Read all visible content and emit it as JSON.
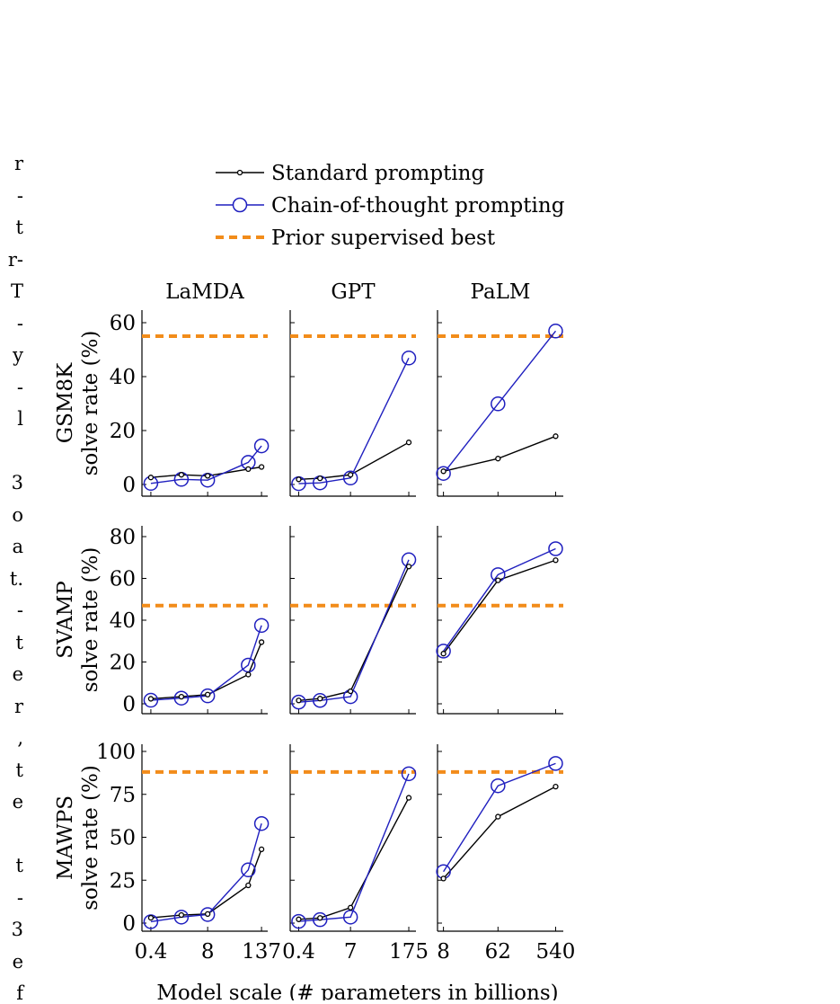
{
  "left_edge_fragments": [
    "r",
    "-",
    "t",
    "r-",
    "T",
    "-",
    "y",
    "-",
    "l",
    "",
    "3",
    "o",
    "a",
    "t.",
    "-",
    "t",
    "e",
    "r",
    ",",
    "t",
    "e",
    "",
    "t",
    "-",
    "3",
    "e",
    "f"
  ],
  "legend": {
    "standard": "Standard prompting",
    "cot": "Chain-of-thought prompting",
    "prior": "Prior supervised best"
  },
  "colors": {
    "standard": "#000000",
    "cot": "#1f1fbf",
    "prior": "#f28c1a"
  },
  "xlabel": "Model scale (# parameters in billions)",
  "columns": [
    "LaMDA",
    "GPT",
    "PaLM"
  ],
  "chart_data": {
    "type": "line",
    "title": "",
    "xlabel": "Model scale (# parameters in billions)",
    "x_scale": "log",
    "x_ticks": {
      "LaMDA": [
        0.4,
        8,
        137
      ],
      "GPT": [
        0.4,
        7,
        175
      ],
      "PaLM": [
        8,
        62,
        540
      ]
    },
    "x": {
      "LaMDA": [
        0.4,
        2,
        8,
        68,
        137
      ],
      "GPT": [
        0.4,
        1.3,
        7,
        175
      ],
      "PaLM": [
        8,
        62,
        540
      ]
    },
    "rows": [
      {
        "dataset": "GSM8K",
        "ylabel": "solve rate (%)",
        "ylim": [
          0,
          60
        ],
        "yticks": [
          0,
          20,
          40,
          60
        ],
        "prior_best": 55,
        "LaMDA": {
          "standard": [
            2.6,
            3.6,
            3.2,
            5.7,
            6.5
          ],
          "cot": [
            0.4,
            1.9,
            1.6,
            8.2,
            14.3
          ]
        },
        "GPT": {
          "standard": [
            1.9,
            2.3,
            3.6,
            15.6
          ],
          "cot": [
            0.3,
            0.6,
            2.4,
            46.9
          ]
        },
        "PaLM": {
          "standard": [
            4.9,
            9.6,
            17.9
          ],
          "cot": [
            4.1,
            29.9,
            56.9
          ]
        }
      },
      {
        "dataset": "SVAMP",
        "ylabel": "solve rate (%)",
        "ylim": [
          0,
          80
        ],
        "yticks": [
          0,
          20,
          40,
          60,
          80
        ],
        "prior_best": 47,
        "LaMDA": {
          "standard": [
            2.4,
            3.4,
            4.4,
            14.0,
            29.5
          ],
          "cot": [
            1.7,
            2.7,
            3.8,
            18.5,
            37.5
          ]
        },
        "GPT": {
          "standard": [
            1.6,
            2.5,
            6.0,
            65.7
          ],
          "cot": [
            0.8,
            1.6,
            3.4,
            68.9
          ]
        },
        "PaLM": {
          "standard": [
            24.0,
            59.1,
            68.7
          ],
          "cot": [
            25.2,
            61.8,
            74.2
          ]
        }
      },
      {
        "dataset": "MAWPS",
        "ylabel": "solve rate (%)",
        "ylim": [
          0,
          100
        ],
        "yticks": [
          0,
          25,
          50,
          75,
          100
        ],
        "prior_best": 88,
        "LaMDA": {
          "standard": [
            3.1,
            4.7,
            5.3,
            22.0,
            43.0
          ],
          "cot": [
            0.8,
            3.5,
            5.0,
            31.0,
            58.0
          ]
        },
        "GPT": {
          "standard": [
            2.2,
            3.0,
            9.0,
            73.0
          ],
          "cot": [
            1.0,
            2.0,
            3.5,
            87.0
          ]
        },
        "PaLM": {
          "standard": [
            26.0,
            62.0,
            79.5
          ],
          "cot": [
            30.0,
            80.0,
            93.0
          ]
        }
      }
    ]
  }
}
